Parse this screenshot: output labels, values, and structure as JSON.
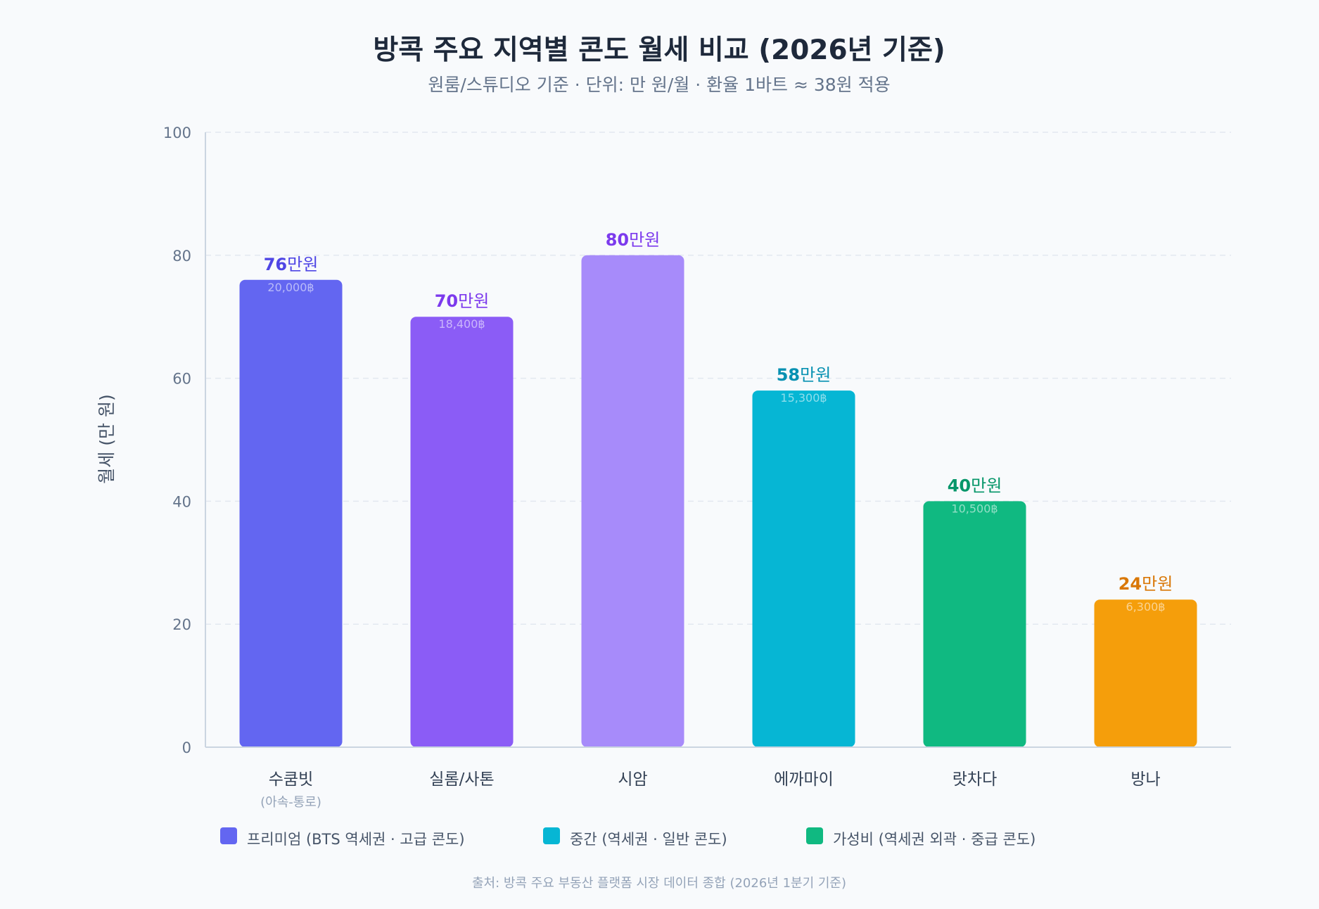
{
  "chart_data": {
    "type": "bar",
    "title": "방콕 주요 지역별 콘도 월세 비교 (2026년 기준)",
    "subtitle": "원룸/스튜디오 기준 · 단위: 만 원/월 · 환율 1바트 ≈ 38원 적용",
    "ylabel": "월세 (만 원)",
    "ylim": [
      0,
      100
    ],
    "yticks": [
      0,
      20,
      40,
      60,
      80,
      100
    ],
    "grid": true,
    "value_suffix": "만원",
    "categories": [
      {
        "name": "수쿰빗",
        "sub": "(아속-통로)",
        "value": 76,
        "thb": "20,000฿",
        "color": "#6366f1",
        "label_color": "#4f46e5"
      },
      {
        "name": "실롬/사톤",
        "sub": "",
        "value": 70,
        "thb": "18,400฿",
        "color": "#8b5cf6",
        "label_color": "#7c3aed"
      },
      {
        "name": "시암",
        "sub": "",
        "value": 80,
        "thb": "",
        "color": "#a78bfa",
        "label_color": "#7c3aed"
      },
      {
        "name": "에까마이",
        "sub": "",
        "value": 58,
        "thb": "15,300฿",
        "color": "#06b6d4",
        "label_color": "#0891b2"
      },
      {
        "name": "랏차다",
        "sub": "",
        "value": 40,
        "thb": "10,500฿",
        "color": "#10b981",
        "label_color": "#059669"
      },
      {
        "name": "방나",
        "sub": "",
        "value": 24,
        "thb": "6,300฿",
        "color": "#f59e0b",
        "label_color": "#d97706"
      }
    ],
    "legend": [
      {
        "label": "프리미엄 (BTS 역세권 · 고급 콘도)",
        "color": "#6366f1"
      },
      {
        "label": "중간 (역세권 · 일반 콘도)",
        "color": "#06b6d4"
      },
      {
        "label": "가성비 (역세권 외곽 · 중급 콘도)",
        "color": "#10b981"
      }
    ],
    "source": "출처: 방콕 주요 부동산 플랫폼 시장 데이터 종합 (2026년 1분기 기준)"
  },
  "colors": {
    "axis": "#cbd5e1",
    "grid": "#e2e8f0",
    "background": "#f8fafc"
  }
}
